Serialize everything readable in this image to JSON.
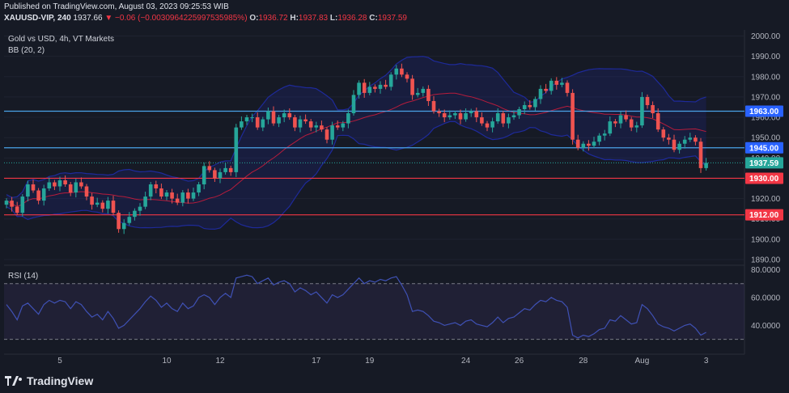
{
  "header": {
    "published": "Published on TradingView.com, August 03, 2023 09:25:53 WIB",
    "symbol": "XAUUSD-VIP, 240",
    "last": "1937.66",
    "change": "−0.06 (−0.003096422599753598 5%)",
    "change_text": "−0.06 (−0.0030964225997535985%)",
    "o_label": "O:",
    "o": "1936.72",
    "h_label": "H:",
    "h": "1937.83",
    "l_label": "L:",
    "l": "1936.28",
    "c_label": "C:",
    "c": "1937.59"
  },
  "legend": {
    "title": "Gold vs USD, 4h, VT Markets",
    "bb": "BB (20, 2)",
    "rsi": "RSI (14)"
  },
  "brand": {
    "name": "TradingView",
    "icon": "tradingview-logo-icon"
  },
  "colors": {
    "background": "#161a25",
    "up": "#26a69a",
    "down": "#ef5350",
    "support": "#f23645",
    "resistance": "#2962ff",
    "resistance_line": "#4aa3e8",
    "bb_mid": "#b71c3c",
    "bb_band": "#1e2a9a",
    "rsi": "#3f51b5"
  },
  "chart_data": [
    {
      "type": "candlestick",
      "title": "Gold vs USD, 4h, VT Markets",
      "ylim": [
        1888,
        2003
      ],
      "y_ticks": [
        "2000.00",
        "1990.00",
        "1980.00",
        "1970.00",
        "1960.00",
        "1950.00",
        "1940.00",
        "1930.00",
        "1920.00",
        "1910.00",
        "1900.00",
        "1890.00"
      ],
      "x_ticks": [
        {
          "label": "5",
          "i": 10
        },
        {
          "label": "10",
          "i": 30
        },
        {
          "label": "12",
          "i": 40
        },
        {
          "label": "17",
          "i": 58
        },
        {
          "label": "19",
          "i": 68
        },
        {
          "label": "24",
          "i": 86
        },
        {
          "label": "26",
          "i": 96
        },
        {
          "label": "28",
          "i": 108
        },
        {
          "label": "Aug",
          "i": 119
        },
        {
          "label": "3",
          "i": 131
        }
      ],
      "price_tags": [
        {
          "value": 1963.0,
          "label": "1963.00",
          "color": "#2962ff"
        },
        {
          "value": 1945.0,
          "label": "1945.00",
          "color": "#2962ff"
        },
        {
          "value": 1937.59,
          "label": "1937.59",
          "color": "#26a69a"
        },
        {
          "value": 1930.0,
          "label": "1930.00",
          "color": "#f23645"
        },
        {
          "value": 1912.0,
          "label": "1912.00",
          "color": "#f23645"
        }
      ],
      "horizontal_lines": [
        1963.0,
        1945.0,
        1930.0,
        1912.0
      ],
      "closes": [
        1919,
        1916,
        1913,
        1921,
        1927,
        1924,
        1919,
        1925,
        1928,
        1926,
        1929,
        1927,
        1923,
        1928,
        1926,
        1921,
        1917,
        1918,
        1915,
        1919,
        1913,
        1905,
        1908,
        1911,
        1914,
        1916,
        1921,
        1927,
        1925,
        1921,
        1923,
        1920,
        1918,
        1923,
        1920,
        1923,
        1927,
        1936,
        1934,
        1930,
        1933,
        1935,
        1933,
        1955,
        1958,
        1960,
        1960,
        1955,
        1959,
        1963,
        1957,
        1960,
        1962,
        1960,
        1955,
        1959,
        1958,
        1955,
        1956,
        1954,
        1949,
        1956,
        1955,
        1957,
        1962,
        1971,
        1977,
        1972,
        1975,
        1974,
        1976,
        1975,
        1981,
        1984,
        1981,
        1979,
        1971,
        1972,
        1974,
        1968,
        1963,
        1962,
        1960,
        1961,
        1962,
        1959,
        1962,
        1963,
        1960,
        1957,
        1955,
        1958,
        1962,
        1957,
        1960,
        1961,
        1964,
        1966,
        1965,
        1969,
        1974,
        1973,
        1978,
        1976,
        1977,
        1972,
        1949,
        1945,
        1947,
        1946,
        1948,
        1951,
        1952,
        1958,
        1957,
        1961,
        1959,
        1955,
        1956,
        1970,
        1966,
        1962,
        1954,
        1950,
        1949,
        1944,
        1947,
        1949,
        1950,
        1948,
        1935,
        1937.59
      ]
    },
    {
      "type": "line",
      "title": "RSI (14)",
      "ylim": [
        24,
        82
      ],
      "y_ticks": [
        "80.0000",
        "60.0000",
        "40.0000"
      ],
      "bands": [
        70,
        30
      ],
      "values": [
        55,
        50,
        44,
        54,
        56,
        52,
        48,
        55,
        58,
        56,
        58,
        57,
        52,
        57,
        55,
        50,
        46,
        48,
        44,
        50,
        45,
        38,
        40,
        44,
        48,
        52,
        57,
        61,
        58,
        53,
        56,
        52,
        50,
        56,
        52,
        54,
        60,
        62,
        60,
        55,
        60,
        63,
        60,
        74,
        75,
        76,
        75,
        70,
        72,
        74,
        69,
        71,
        72,
        70,
        64,
        67,
        65,
        62,
        64,
        60,
        56,
        62,
        60,
        62,
        66,
        70,
        74,
        70,
        72,
        71,
        73,
        72,
        74,
        75,
        69,
        62,
        50,
        51,
        50,
        47,
        43,
        42,
        40,
        41,
        42,
        40,
        43,
        44,
        41,
        40,
        39,
        42,
        46,
        42,
        45,
        46,
        49,
        52,
        51,
        55,
        58,
        57,
        60,
        58,
        57,
        53,
        33,
        31,
        33,
        32,
        34,
        37,
        38,
        44,
        43,
        47,
        44,
        41,
        42,
        55,
        52,
        47,
        41,
        39,
        38,
        36,
        38,
        40,
        41,
        38,
        33,
        35
      ]
    }
  ]
}
